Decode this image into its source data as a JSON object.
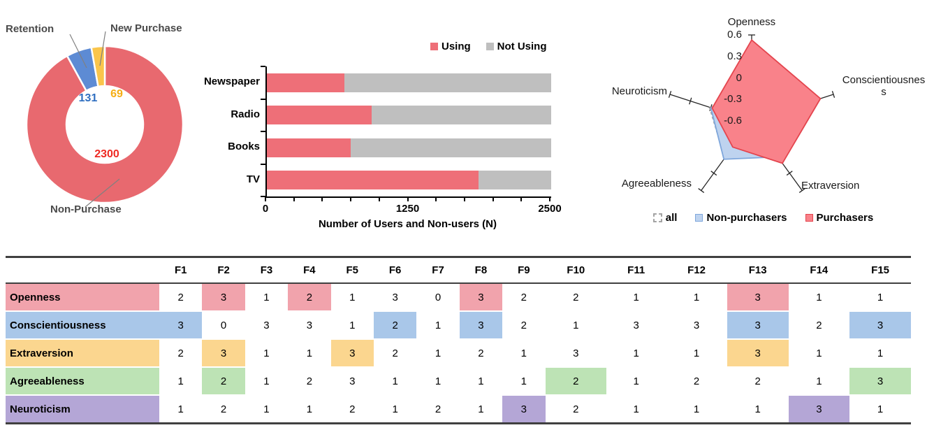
{
  "chart_data": [
    {
      "type": "pie",
      "subtype": "donut",
      "slices": [
        {
          "label": "Non-Purchase",
          "value": 2300,
          "color": "#E8696F",
          "data_label_color": "#EE2B24"
        },
        {
          "label": "Retention",
          "value": 131,
          "color": "#5D8BD4",
          "data_label_color": "#2E6EC0"
        },
        {
          "label": "New Purchase",
          "value": 69,
          "color": "#FAC54B",
          "data_label_color": "#F5AE15"
        }
      ],
      "leader_line_color": "#808080"
    },
    {
      "type": "bar",
      "orientation": "horizontal",
      "stacked": true,
      "categories": [
        "Newspaper",
        "Radio",
        "Books",
        "TV"
      ],
      "series": [
        {
          "name": "Using",
          "color": "#EE6F78",
          "values": [
            680,
            920,
            740,
            1860
          ]
        },
        {
          "name": "Not Using",
          "color": "#BFBFBF",
          "values": [
            1820,
            1580,
            1760,
            640
          ]
        }
      ],
      "xlabel": "Number of Users and Non-users (N)",
      "xlim": [
        0,
        2500
      ],
      "xticks": [
        "0",
        "1250",
        "2500"
      ],
      "minor_tick_count": 10,
      "legend_position": "top-right"
    },
    {
      "type": "radar",
      "axes": [
        "Openness",
        "Conscientiousness",
        "Extraversion",
        "Agreeableness",
        "Neuroticism"
      ],
      "axis_display": [
        "Openness",
        "Conscientiousnes\ns",
        "Extraversion",
        "Agreeableness",
        "Neuroticism"
      ],
      "tick_labels": [
        "0.6",
        "0.3",
        "0",
        "-0.3",
        "-0.6"
      ],
      "range": {
        "min": -0.6,
        "max": 0.6,
        "step": 0.3
      },
      "series": [
        {
          "name": "all",
          "line": "dashed",
          "stroke": "#A3A3A3",
          "fill": "none",
          "values": [
            -0.28,
            -0.4,
            0.0,
            0.04,
            0.02
          ]
        },
        {
          "name": "Non-purchasers",
          "line": "solid",
          "stroke": "#7FA7DC",
          "fill": "#BED3EF",
          "values": [
            -0.4,
            -0.42,
            0.02,
            0.06,
            0.0
          ]
        },
        {
          "name": "Purchasers",
          "line": "solid",
          "stroke": "#E4454E",
          "fill": "#F9828A",
          "values": [
            0.53,
            0.41,
            0.13,
            -0.15,
            -0.02
          ]
        }
      ],
      "legend_position": "bottom"
    },
    {
      "type": "table",
      "columns": [
        "F1",
        "F2",
        "F3",
        "F4",
        "F5",
        "F6",
        "F7",
        "F8",
        "F9",
        "F10",
        "F11",
        "F12",
        "F13",
        "F14",
        "F15"
      ],
      "rows": [
        {
          "label": "Openness",
          "color": "#F1A3AC",
          "values": [
            2,
            3,
            1,
            2,
            1,
            3,
            0,
            3,
            2,
            2,
            1,
            1,
            3,
            1,
            1
          ],
          "highlighted": [
            2,
            4,
            8,
            13
          ]
        },
        {
          "label": "Conscientiousness",
          "color": "#A9C7E9",
          "values": [
            3,
            0,
            3,
            3,
            1,
            2,
            1,
            3,
            2,
            1,
            3,
            3,
            3,
            2,
            3
          ],
          "highlighted": [
            1,
            6,
            8,
            13,
            15
          ]
        },
        {
          "label": "Extraversion",
          "color": "#FBD68F",
          "values": [
            2,
            3,
            1,
            1,
            3,
            2,
            1,
            2,
            1,
            3,
            1,
            1,
            3,
            1,
            1
          ],
          "highlighted": [
            2,
            5,
            13
          ]
        },
        {
          "label": "Agreeableness",
          "color": "#BDE3B5",
          "values": [
            1,
            2,
            1,
            2,
            3,
            1,
            1,
            1,
            1,
            2,
            1,
            2,
            2,
            1,
            3
          ],
          "highlighted": [
            2,
            10,
            15
          ]
        },
        {
          "label": "Neuroticism",
          "color": "#B4A6D6",
          "values": [
            1,
            2,
            1,
            1,
            2,
            1,
            2,
            1,
            3,
            2,
            1,
            1,
            1,
            3,
            1
          ],
          "highlighted": [
            9,
            14
          ]
        }
      ]
    }
  ]
}
